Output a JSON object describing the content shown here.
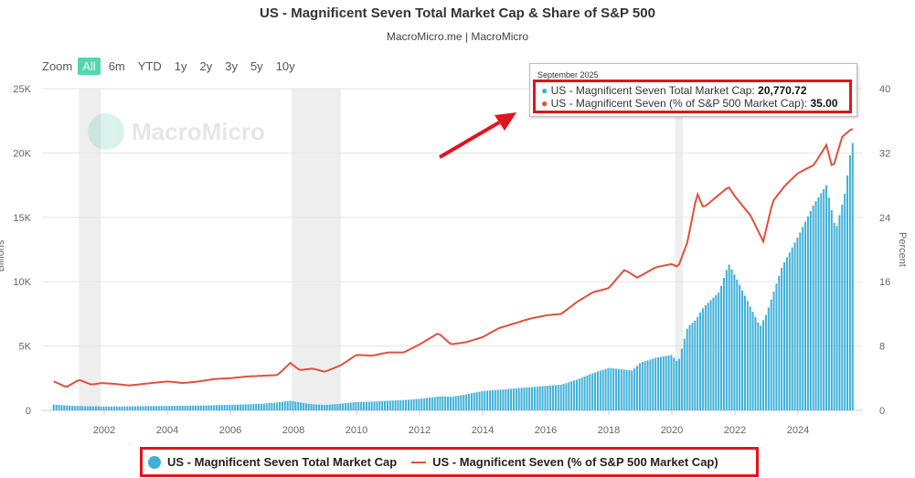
{
  "title": "US - Magnificent Seven Total Market Cap & Share of S&P 500",
  "subtitle": "MacroMicro.me | MacroMicro",
  "zoom": {
    "label": "Zoom",
    "buttons": [
      "All",
      "6m",
      "YTD",
      "1y",
      "2y",
      "3y",
      "5y",
      "10y"
    ],
    "active": "All"
  },
  "watermark": "MacroMicro",
  "tooltip": {
    "date": "September 2025",
    "row1_label": "US - Magnificent Seven Total Market Cap: ",
    "row1_value": "20,770.72",
    "row2_label": "US - Magnificent Seven (% of S&P 500 Market Cap): ",
    "row2_value": "35.00"
  },
  "legend": {
    "bar_label": "US - Magnificent Seven Total Market Cap",
    "line_label": "US - Magnificent Seven (% of S&P 500 Market Cap)"
  },
  "colors": {
    "bar": "#3fb0d8",
    "line": "#e0503c",
    "shade": "#eeeeee",
    "highlight": "#e0141e",
    "zoom_active": "#55d6b0"
  },
  "chart_data": {
    "type": "bar",
    "left_axis": {
      "label": "Billions",
      "ticks": [
        "0",
        "5K",
        "10K",
        "15K",
        "20K",
        "25K"
      ],
      "range": [
        0,
        25000
      ]
    },
    "right_axis": {
      "label": "Percent",
      "ticks": [
        "0",
        "8",
        "16",
        "24",
        "32",
        "40"
      ],
      "range": [
        0,
        40
      ]
    },
    "x_ticks": [
      "2002",
      "2004",
      "2006",
      "2008",
      "2010",
      "2012",
      "2014",
      "2016",
      "2018",
      "2020",
      "2022",
      "2024"
    ],
    "x_range": [
      2000.4,
      2025.75
    ],
    "recession_shading": [
      [
        2001.2,
        2001.9
      ],
      [
        2007.95,
        2009.5
      ],
      [
        2020.1,
        2020.35
      ]
    ],
    "series": [
      {
        "name": "US - Magnificent Seven Total Market Cap",
        "type": "bar",
        "axis": "left",
        "x": [
          2000.4,
          2001.0,
          2001.5,
          2002.0,
          2002.5,
          2003.0,
          2003.5,
          2004.0,
          2004.5,
          2005.0,
          2005.5,
          2006.0,
          2006.5,
          2007.0,
          2007.5,
          2007.9,
          2008.5,
          2009.0,
          2009.5,
          2010.0,
          2010.5,
          2011.0,
          2011.5,
          2012.0,
          2012.7,
          2013.0,
          2013.5,
          2014.0,
          2014.5,
          2015.0,
          2015.5,
          2016.0,
          2016.5,
          2017.0,
          2017.5,
          2018.0,
          2018.75,
          2019.0,
          2019.5,
          2020.0,
          2020.2,
          2020.5,
          2020.75,
          2021.0,
          2021.5,
          2021.8,
          2022.0,
          2022.5,
          2022.8,
          2023.0,
          2023.5,
          2024.0,
          2024.5,
          2024.9,
          2025.2,
          2025.5,
          2025.7
        ],
        "values": [
          450,
          350,
          320,
          300,
          300,
          320,
          330,
          340,
          360,
          370,
          400,
          430,
          470,
          520,
          620,
          750,
          500,
          420,
          520,
          650,
          680,
          750,
          800,
          900,
          1100,
          1050,
          1250,
          1500,
          1600,
          1700,
          1800,
          1900,
          2000,
          2400,
          2900,
          3300,
          3100,
          3700,
          4100,
          4300,
          3700,
          6500,
          7000,
          8000,
          9200,
          11400,
          10500,
          8000,
          6500,
          7500,
          11200,
          13500,
          16000,
          17500,
          14000,
          17000,
          20770.72
        ]
      },
      {
        "name": "US - Magnificent Seven (% of S&P 500 Market Cap)",
        "type": "line",
        "axis": "right",
        "x": [
          2000.4,
          2000.8,
          2001.2,
          2001.6,
          2001.9,
          2002.3,
          2002.8,
          2003.5,
          2004.0,
          2004.5,
          2005.0,
          2005.5,
          2006.0,
          2006.5,
          2007.0,
          2007.5,
          2007.9,
          2008.2,
          2008.6,
          2009.0,
          2009.5,
          2010.0,
          2010.5,
          2011.0,
          2011.5,
          2012.0,
          2012.6,
          2013.0,
          2013.5,
          2014.0,
          2014.5,
          2015.0,
          2015.5,
          2016.0,
          2016.5,
          2017.0,
          2017.5,
          2018.0,
          2018.5,
          2018.9,
          2019.5,
          2020.0,
          2020.2,
          2020.5,
          2020.8,
          2021.0,
          2021.4,
          2021.8,
          2022.0,
          2022.5,
          2022.9,
          2023.2,
          2023.6,
          2024.0,
          2024.5,
          2024.9,
          2025.1,
          2025.4,
          2025.7
        ],
        "values": [
          3.6,
          2.9,
          3.8,
          3.2,
          3.4,
          3.3,
          3.1,
          3.4,
          3.6,
          3.4,
          3.6,
          3.9,
          4.0,
          4.2,
          4.3,
          4.4,
          5.9,
          5.0,
          5.2,
          4.8,
          5.6,
          6.9,
          6.8,
          7.2,
          7.2,
          8.2,
          9.6,
          8.2,
          8.5,
          9.1,
          10.2,
          10.8,
          11.4,
          11.8,
          12.0,
          13.5,
          14.7,
          15.2,
          17.5,
          16.5,
          17.8,
          18.2,
          17.8,
          21.0,
          27.0,
          25.2,
          26.5,
          27.8,
          26.6,
          24.2,
          21.0,
          26.0,
          28.0,
          29.5,
          30.5,
          33.0,
          30.0,
          34.0,
          35.0
        ]
      }
    ]
  }
}
